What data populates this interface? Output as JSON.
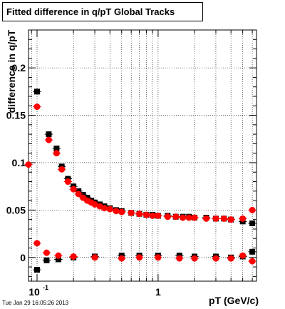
{
  "title": "Fitted difference in q/pT  Global Tracks",
  "timestamp": "Tue Jan 29 16:05:26 2013",
  "chart_data": {
    "type": "scatter",
    "title": "Fitted difference in q/pT  Global Tracks",
    "xlabel": "pT (GeV/c)",
    "ylabel": "difference in q/pT",
    "xscale": "log",
    "xlim": [
      0.085,
      6.5
    ],
    "ylim": [
      -0.025,
      0.24
    ],
    "grid": true,
    "x_ticks": [
      {
        "value": 0.1,
        "label": "10^-1"
      },
      {
        "value": 1,
        "label": "1"
      }
    ],
    "y_ticks": [
      0,
      0.05,
      0.1,
      0.15,
      0.2
    ],
    "series": [
      {
        "color": "#000000",
        "points": [
          [
            0.1,
            0.175
          ],
          [
            0.125,
            0.13
          ],
          [
            0.145,
            0.115
          ],
          [
            0.16,
            0.096
          ],
          [
            0.18,
            0.083
          ],
          [
            0.2,
            0.075
          ],
          [
            0.22,
            0.07
          ],
          [
            0.24,
            0.066
          ],
          [
            0.26,
            0.063
          ],
          [
            0.28,
            0.06
          ],
          [
            0.3,
            0.058
          ],
          [
            0.33,
            0.056
          ],
          [
            0.36,
            0.054
          ],
          [
            0.4,
            0.052
          ],
          [
            0.45,
            0.05
          ],
          [
            0.5,
            0.049
          ],
          [
            0.6,
            0.047
          ],
          [
            0.7,
            0.046
          ],
          [
            0.8,
            0.045
          ],
          [
            0.9,
            0.045
          ],
          [
            1.0,
            0.044
          ],
          [
            1.2,
            0.044
          ],
          [
            1.4,
            0.043
          ],
          [
            1.6,
            0.043
          ],
          [
            1.8,
            0.043
          ],
          [
            2.0,
            0.042
          ],
          [
            2.5,
            0.042
          ],
          [
            3.0,
            0.041
          ],
          [
            3.5,
            0.041
          ],
          [
            4.0,
            0.04
          ],
          [
            5.0,
            0.038
          ],
          [
            6.0,
            0.036
          ],
          [
            0.1,
            -0.013
          ],
          [
            0.12,
            -0.003
          ],
          [
            0.15,
            -0.002
          ],
          [
            0.2,
            0.0
          ],
          [
            0.3,
            0.001
          ],
          [
            0.5,
            0.002
          ],
          [
            0.7,
            0.002
          ],
          [
            1.0,
            0.002
          ],
          [
            1.5,
            0.002
          ],
          [
            2.0,
            0.001
          ],
          [
            3.0,
            0.001
          ],
          [
            4.0,
            0.0
          ],
          [
            5.0,
            0.001
          ],
          [
            6.0,
            0.006
          ]
        ]
      },
      {
        "color": "#ff0000",
        "points": [
          [
            0.085,
            0.098
          ],
          [
            0.1,
            0.159
          ],
          [
            0.125,
            0.124
          ],
          [
            0.145,
            0.11
          ],
          [
            0.16,
            0.093
          ],
          [
            0.18,
            0.08
          ],
          [
            0.2,
            0.072
          ],
          [
            0.22,
            0.067
          ],
          [
            0.24,
            0.063
          ],
          [
            0.26,
            0.06
          ],
          [
            0.28,
            0.058
          ],
          [
            0.3,
            0.056
          ],
          [
            0.33,
            0.054
          ],
          [
            0.36,
            0.052
          ],
          [
            0.4,
            0.051
          ],
          [
            0.45,
            0.049
          ],
          [
            0.5,
            0.048
          ],
          [
            0.6,
            0.047
          ],
          [
            0.7,
            0.046
          ],
          [
            0.8,
            0.045
          ],
          [
            0.9,
            0.044
          ],
          [
            1.0,
            0.044
          ],
          [
            1.2,
            0.043
          ],
          [
            1.4,
            0.043
          ],
          [
            1.6,
            0.042
          ],
          [
            1.8,
            0.042
          ],
          [
            2.0,
            0.042
          ],
          [
            2.5,
            0.041
          ],
          [
            3.0,
            0.041
          ],
          [
            3.5,
            0.041
          ],
          [
            4.0,
            0.04
          ],
          [
            5.0,
            0.041
          ],
          [
            6.0,
            0.05
          ],
          [
            0.1,
            0.015
          ],
          [
            0.12,
            0.005
          ],
          [
            0.15,
            0.002
          ],
          [
            0.2,
            0.001
          ],
          [
            0.3,
            0.0
          ],
          [
            0.5,
            -0.001
          ],
          [
            0.7,
            0.0
          ],
          [
            1.0,
            0.0
          ],
          [
            1.5,
            -0.001
          ],
          [
            2.0,
            -0.001
          ],
          [
            3.0,
            -0.001
          ],
          [
            4.0,
            -0.001
          ],
          [
            5.0,
            0.002
          ],
          [
            6.0,
            -0.004
          ]
        ]
      }
    ]
  }
}
